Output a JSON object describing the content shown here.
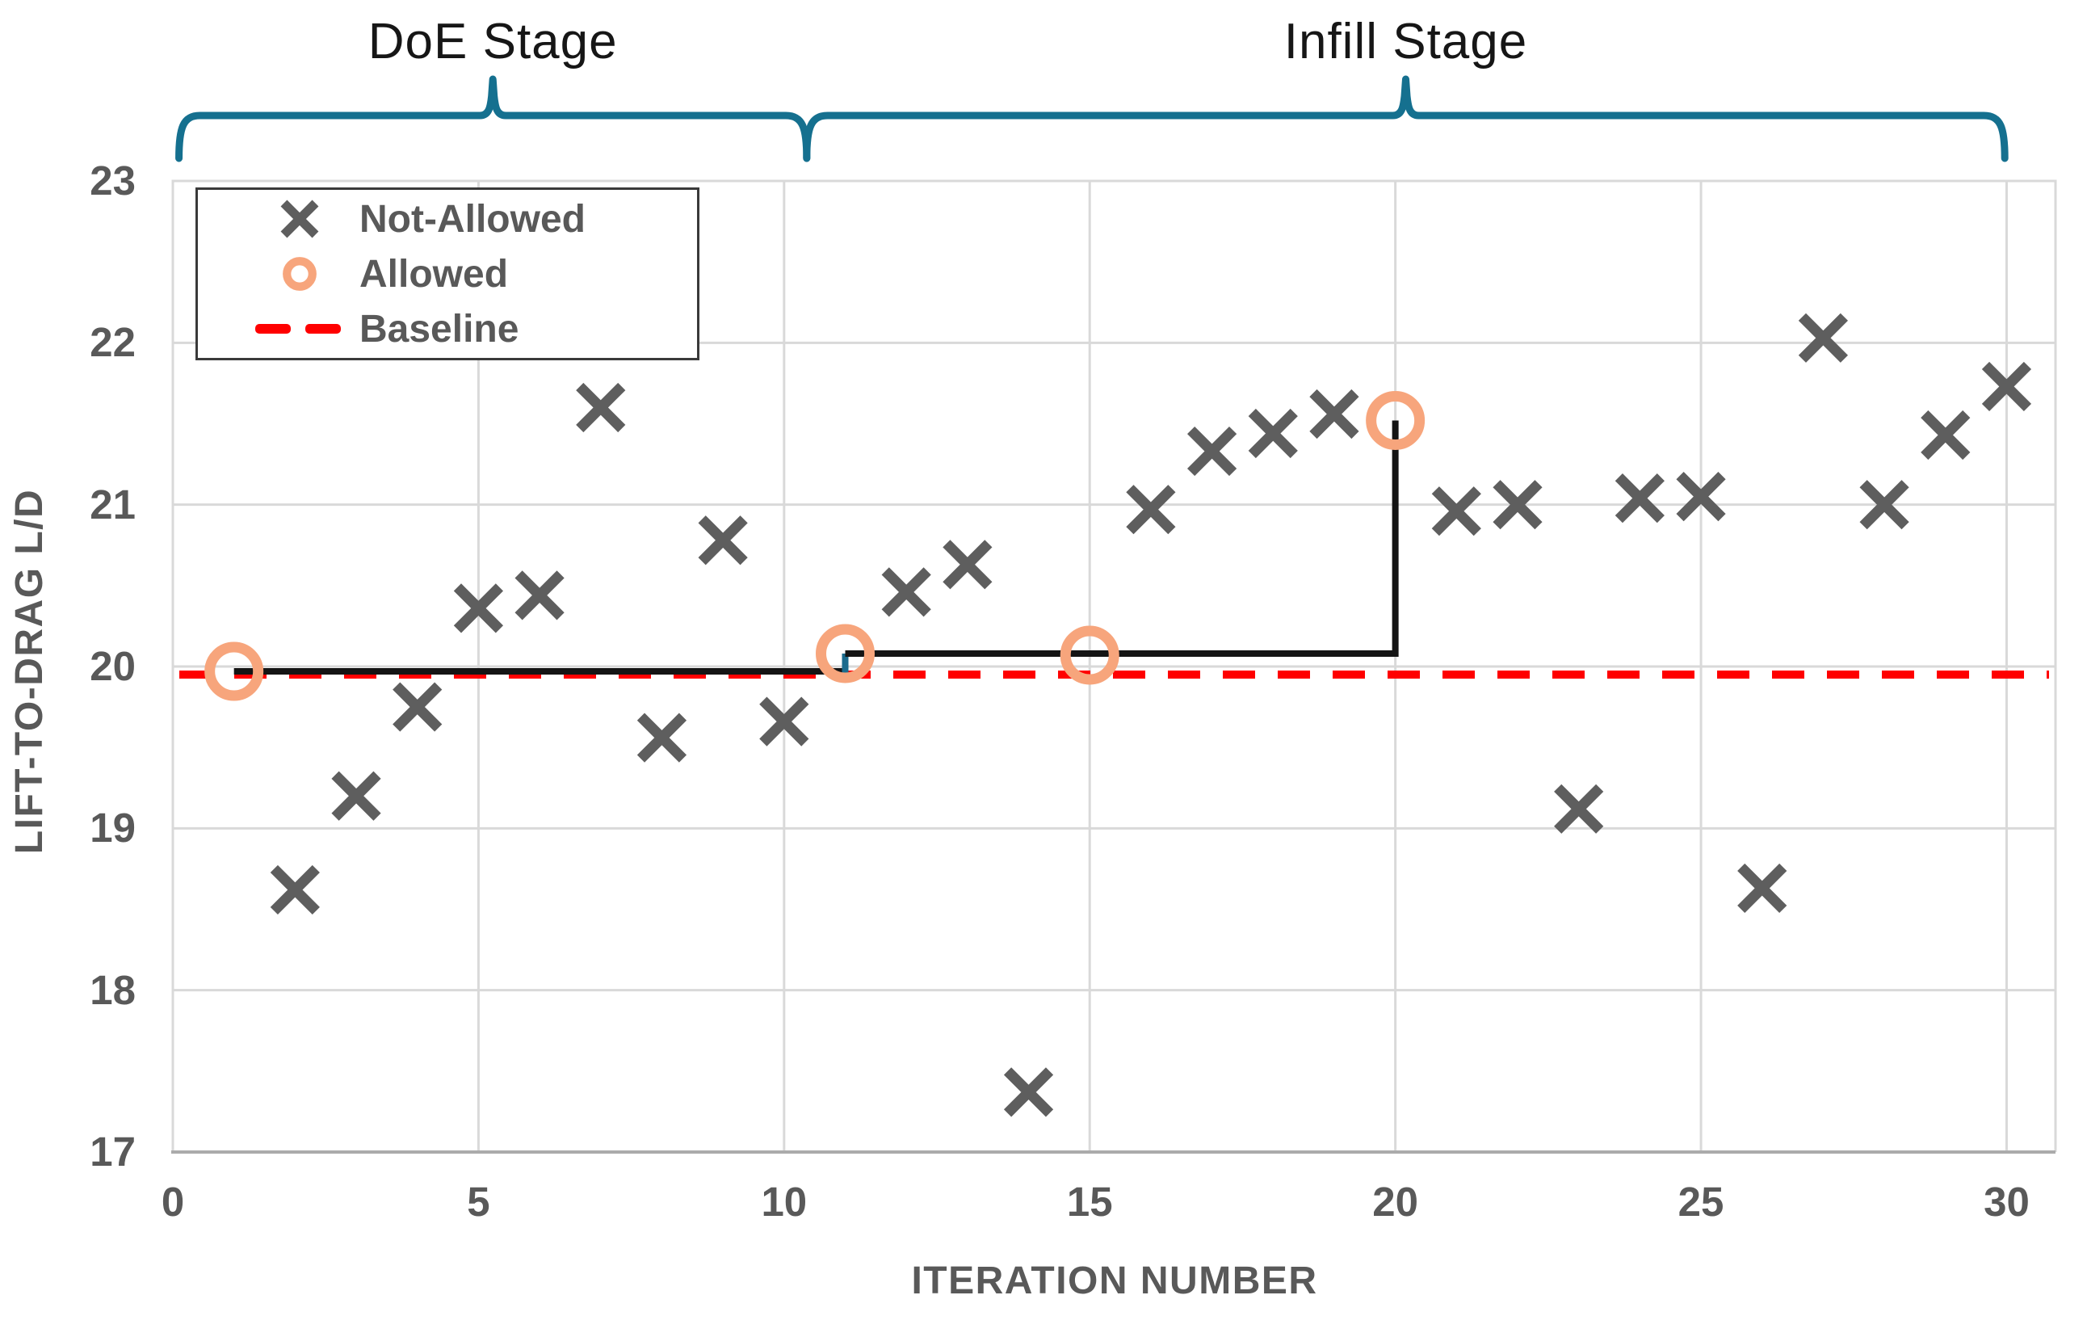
{
  "stage_brackets": {
    "color": "#15708F",
    "items": [
      {
        "label": "DoE Stage",
        "x_start": 0.1,
        "x_end": 10.37
      },
      {
        "label": "Infill Stage",
        "x_start": 10.37,
        "x_end": 29.97
      }
    ]
  },
  "chart_data": {
    "type": "scatter",
    "title": "",
    "xlabel": "ITERATION NUMBER",
    "ylabel": "LIFT-TO-DRAG L/D",
    "xlim": [
      0,
      30.8
    ],
    "ylim": [
      17,
      23
    ],
    "x_ticks": [
      0,
      5,
      10,
      15,
      20,
      25,
      30
    ],
    "y_ticks": [
      17,
      18,
      19,
      20,
      21,
      22,
      23
    ],
    "grid": true,
    "legend_position": "top-left",
    "series": [
      {
        "name": "Not-Allowed",
        "marker": "x",
        "color": "#5E5E5E",
        "points": [
          [
            2,
            18.62
          ],
          [
            3,
            19.2
          ],
          [
            4,
            19.75
          ],
          [
            5,
            20.36
          ],
          [
            6,
            20.44
          ],
          [
            7,
            21.6
          ],
          [
            8,
            19.56
          ],
          [
            9,
            20.78
          ],
          [
            10,
            19.66
          ],
          [
            12,
            20.46
          ],
          [
            13,
            20.63
          ],
          [
            14,
            17.37
          ],
          [
            16,
            20.97
          ],
          [
            17,
            21.33
          ],
          [
            18,
            21.44
          ],
          [
            19,
            21.56
          ],
          [
            21,
            20.96
          ],
          [
            22,
            21.0
          ],
          [
            23,
            19.12
          ],
          [
            24,
            21.04
          ],
          [
            25,
            21.05
          ],
          [
            26,
            18.63
          ],
          [
            27,
            22.03
          ],
          [
            28,
            21.0
          ],
          [
            29,
            21.43
          ],
          [
            30,
            21.73
          ]
        ]
      },
      {
        "name": "Allowed",
        "marker": "circle-open",
        "color": "#F7A57C",
        "points": [
          [
            1,
            19.97
          ],
          [
            11,
            20.08
          ],
          [
            15,
            20.07
          ],
          [
            20,
            21.52
          ]
        ]
      }
    ],
    "baseline": {
      "name": "Baseline",
      "value": 19.95,
      "color": "#FF0000",
      "style": "dashed"
    },
    "best_so_far_line": {
      "color": "#141414",
      "step_connector_color": "#1B6B8D",
      "points": [
        [
          1,
          19.97
        ],
        [
          11,
          19.97
        ],
        [
          11,
          20.08
        ],
        [
          20,
          20.08
        ],
        [
          20,
          21.52
        ]
      ]
    },
    "style_colors": {
      "gridline": "#D9D9D9",
      "plot_border": "#D9D9D9",
      "bottom_axis": "#ABABAB",
      "tick_text": "#595959"
    }
  }
}
